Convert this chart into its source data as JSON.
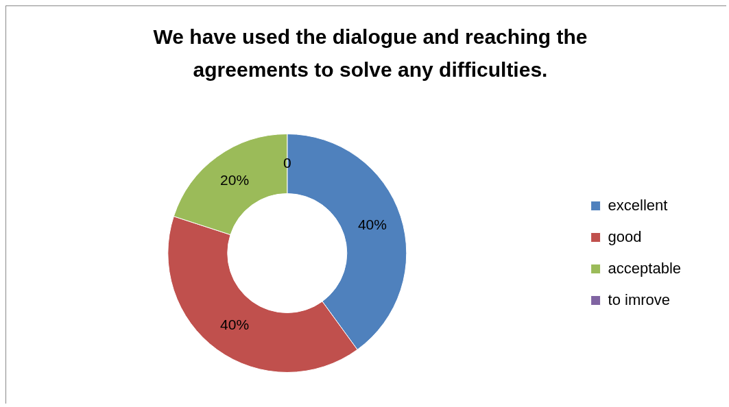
{
  "chart_data": {
    "type": "donut",
    "title": "We have used the dialogue and reaching the agreements to solve any difficulties.",
    "categories": [
      "excellent",
      "good",
      "acceptable",
      "to imrove"
    ],
    "values": [
      40,
      40,
      20,
      0
    ],
    "colors": [
      "#4f81bd",
      "#c0504d",
      "#9bbb59",
      "#8064a2"
    ],
    "value_labels": [
      "40%",
      "40%",
      "20%",
      "0"
    ],
    "legend": "right"
  }
}
